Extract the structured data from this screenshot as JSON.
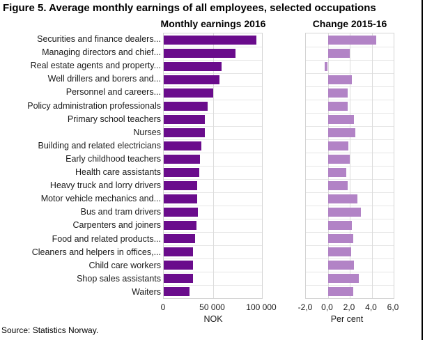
{
  "title": "Figure 5. Average monthly earnings of all employees, selected occupations",
  "source": "Source: Statistics Norway.",
  "colors": {
    "earnings_bar": "#6a0c8c",
    "change_bar": "#b283c6",
    "gridline": "#dcdcdc",
    "plot_border": "#d3d3d3"
  },
  "chart_data": [
    {
      "type": "bar",
      "orientation": "horizontal",
      "title": "Monthly earnings 2016",
      "xlabel": "NOK",
      "xlim": [
        0,
        100000
      ],
      "xtick_labels": [
        "0",
        "50 000",
        "100 000"
      ],
      "xtick_values": [
        0,
        50000,
        100000
      ],
      "grid": true,
      "color": "#6a0c8c",
      "categories": [
        "Securities and finance dealers...",
        "Managing directors and chief...",
        "Real estate agents and property...",
        "Well drillers and borers and...",
        "Personnel and careers...",
        "Policy administration professionals",
        "Primary school teachers",
        "Nurses",
        "Building and related electricians",
        "Early childhood teachers",
        "Health care assistants",
        "Heavy truck and lorry drivers",
        "Motor vehicle mechanics and...",
        "Bus and tram drivers",
        "Carpenters and joiners",
        "Food and related products...",
        "Cleaners and helpers in offices,...",
        "Child care workers",
        "Shop sales assistants",
        "Waiters"
      ],
      "values": [
        94000,
        73000,
        59000,
        56500,
        50500,
        45000,
        42000,
        41500,
        38000,
        37000,
        36500,
        34000,
        34000,
        34500,
        33000,
        32000,
        30000,
        30000,
        30000,
        26000
      ]
    },
    {
      "type": "bar",
      "orientation": "horizontal",
      "title": "Change 2015-16",
      "xlabel": "Per cent",
      "xlim": [
        -2.0,
        6.0
      ],
      "xtick_labels": [
        "-2,0",
        "0,0",
        "2,0",
        "4,0",
        "6,0"
      ],
      "xtick_values": [
        -2.0,
        0.0,
        2.0,
        4.0,
        6.0
      ],
      "grid": true,
      "color": "#b283c6",
      "categories": [
        "Securities and finance dealers...",
        "Managing directors and chief...",
        "Real estate agents and property...",
        "Well drillers and borers and...",
        "Personnel and careers...",
        "Policy administration professionals",
        "Primary school teachers",
        "Nurses",
        "Building and related electricians",
        "Early childhood teachers",
        "Health care assistants",
        "Heavy truck and lorry drivers",
        "Motor vehicle mechanics and...",
        "Bus and tram drivers",
        "Carpenters and joiners",
        "Food and related products...",
        "Cleaners and helpers in offices,...",
        "Child care workers",
        "Shop sales assistants",
        "Waiters"
      ],
      "values": [
        4.4,
        2.0,
        -0.3,
        2.2,
        1.8,
        1.8,
        2.4,
        2.5,
        1.9,
        2.0,
        1.7,
        1.8,
        2.7,
        3.0,
        2.2,
        2.3,
        2.1,
        2.4,
        2.8,
        2.3
      ]
    }
  ]
}
